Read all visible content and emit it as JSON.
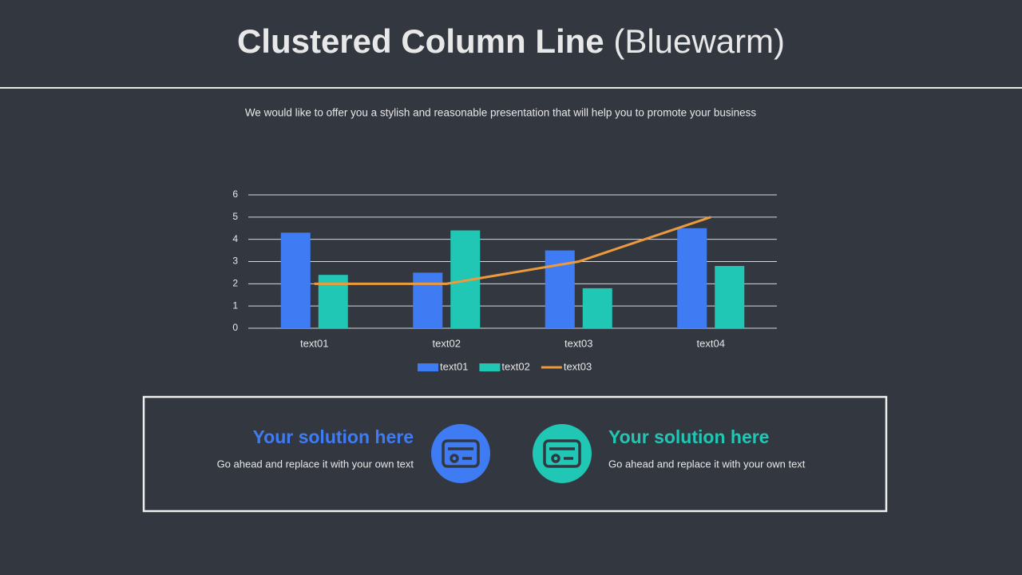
{
  "header": {
    "title_main": "Clustered Column Line",
    "title_suffix": "(Bluewarm)",
    "subtitle": "We would like to offer you a stylish and reasonable presentation that will help you to promote your business"
  },
  "chart_data": {
    "type": "bar",
    "categories": [
      "text01",
      "text02",
      "text03",
      "text04"
    ],
    "series": [
      {
        "name": "text01",
        "color": "#3f7cf4",
        "values": [
          4.3,
          2.5,
          3.5,
          4.5
        ]
      },
      {
        "name": "text02",
        "color": "#20c7b5",
        "values": [
          2.4,
          4.4,
          1.8,
          2.8
        ]
      },
      {
        "name": "text03",
        "color": "#eb9a3c",
        "type": "line",
        "values": [
          2,
          2,
          3,
          5
        ]
      }
    ],
    "ylim": [
      0,
      6
    ],
    "yticks": [
      0,
      1,
      2,
      3,
      4,
      5,
      6
    ],
    "grid": true,
    "legend": "bottom"
  },
  "cards": [
    {
      "title": "Your solution here",
      "text": "Go ahead and replace it with your own text",
      "color": "#3f7cf4"
    },
    {
      "title": "Your solution here",
      "text": "Go ahead and replace it with your own text",
      "color": "#20c7b5"
    }
  ]
}
